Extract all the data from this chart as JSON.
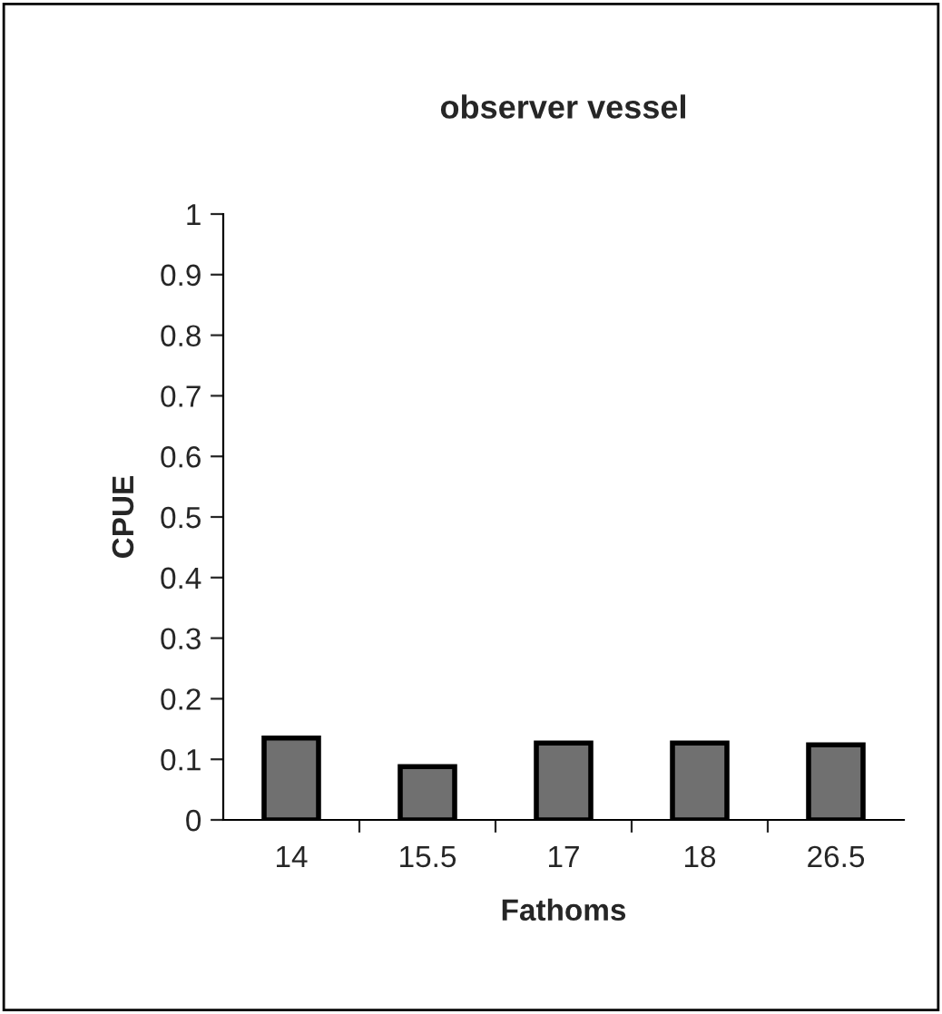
{
  "chart_data": {
    "type": "bar",
    "title": "observer vessel",
    "xlabel": "Fathoms",
    "ylabel": "CPUE",
    "categories": [
      "14",
      "15.5",
      "17",
      "18",
      "26.5"
    ],
    "values": [
      0.135,
      0.088,
      0.127,
      0.127,
      0.124
    ],
    "color": "#707070",
    "ylim": [
      0,
      1
    ],
    "yticks": [
      0,
      0.1,
      0.2,
      0.3,
      0.4,
      0.5,
      0.6,
      0.7,
      0.8,
      0.9,
      1
    ],
    "grid": false
  }
}
